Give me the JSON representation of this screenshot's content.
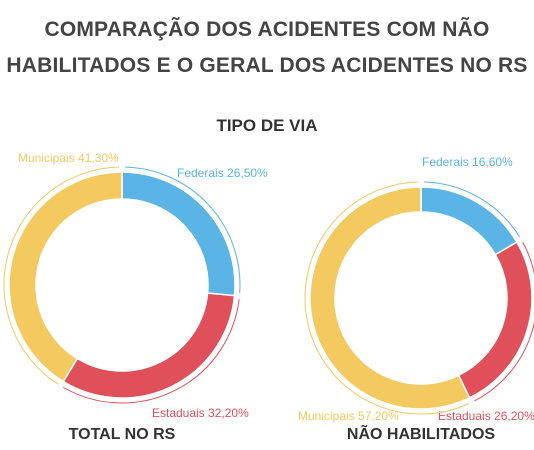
{
  "title_line1": "COMPARAÇÃO DOS ACIDENTES COM NÃO",
  "title_line2": "HABILITADOS E O GERAL DOS ACIDENTES NO RS",
  "subtitle": "TIPO DE VIA",
  "colors": {
    "federais": "#5ab4e5",
    "estaduais": "#e0505a",
    "municipais": "#f3c960"
  },
  "chart_data": [
    {
      "type": "pie",
      "donut": true,
      "caption": "TOTAL NO RS",
      "slices": [
        {
          "label": "Federais",
          "value": 26.5,
          "text": "Federais 26,50%",
          "color": "#5ab4e5"
        },
        {
          "label": "Estaduais",
          "value": 32.2,
          "text": "Estaduais 32,20%",
          "color": "#e0505a"
        },
        {
          "label": "Municipais",
          "value": 41.3,
          "text": "Municipais 41,30%",
          "color": "#f3c960"
        }
      ]
    },
    {
      "type": "pie",
      "donut": true,
      "caption": "NÃO HABILITADOS",
      "slices": [
        {
          "label": "Federais",
          "value": 16.6,
          "text": "Federais 16,60%",
          "color": "#5ab4e5"
        },
        {
          "label": "Estaduais",
          "value": 26.2,
          "text": "Estaduais 26,20%",
          "color": "#e0505a"
        },
        {
          "label": "Municipais",
          "value": 57.2,
          "text": "Municipais 57,20%",
          "color": "#f3c960"
        }
      ]
    }
  ]
}
